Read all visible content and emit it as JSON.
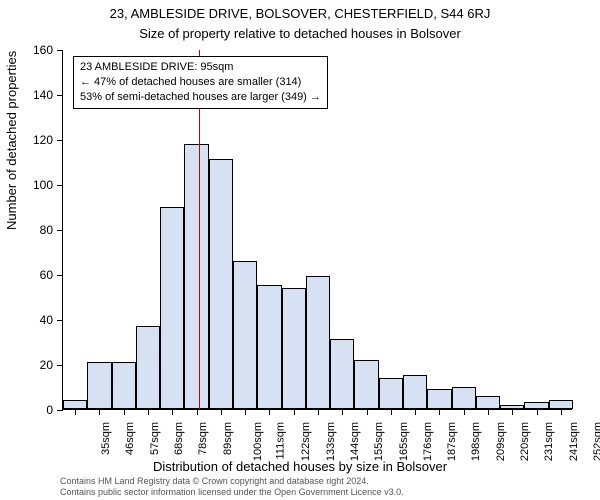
{
  "title_line1": "23, AMBLESIDE DRIVE, BOLSOVER, CHESTERFIELD, S44 6RJ",
  "title_line2": "Size of property relative to detached houses in Bolsover",
  "ylabel": "Number of detached properties",
  "xlabel": "Distribution of detached houses by size in Bolsover",
  "annotation": {
    "line1": "23 AMBLESIDE DRIVE: 95sqm",
    "line2": "← 47% of detached houses are smaller (314)",
    "line3": "53% of semi-detached houses are larger (349) →"
  },
  "footer_line1": "Contains HM Land Registry data © Crown copyright and database right 2024.",
  "footer_line2": "Contains public sector information licensed under the Open Government Licence v3.0.",
  "chart": {
    "type": "histogram",
    "bar_color": "#d6e2f3",
    "bar_border": "#000000",
    "ref_line_color": "#cc0000",
    "background_color": "#ffffff",
    "ylim": [
      0,
      160
    ],
    "ytick_step": 20,
    "categories": [
      "35sqm",
      "46sqm",
      "57sqm",
      "68sqm",
      "78sqm",
      "89sqm",
      "100sqm",
      "111sqm",
      "122sqm",
      "133sqm",
      "144sqm",
      "155sqm",
      "165sqm",
      "176sqm",
      "187sqm",
      "198sqm",
      "209sqm",
      "220sqm",
      "231sqm",
      "241sqm",
      "252sqm"
    ],
    "values": [
      4,
      21,
      21,
      37,
      90,
      118,
      111,
      66,
      55,
      54,
      59,
      31,
      22,
      14,
      15,
      9,
      10,
      6,
      2,
      3,
      4
    ],
    "ref_line_index": 5.6,
    "title_fontsize": 13,
    "label_fontsize": 13,
    "tick_fontsize": 11,
    "annotation_fontsize": 11
  }
}
